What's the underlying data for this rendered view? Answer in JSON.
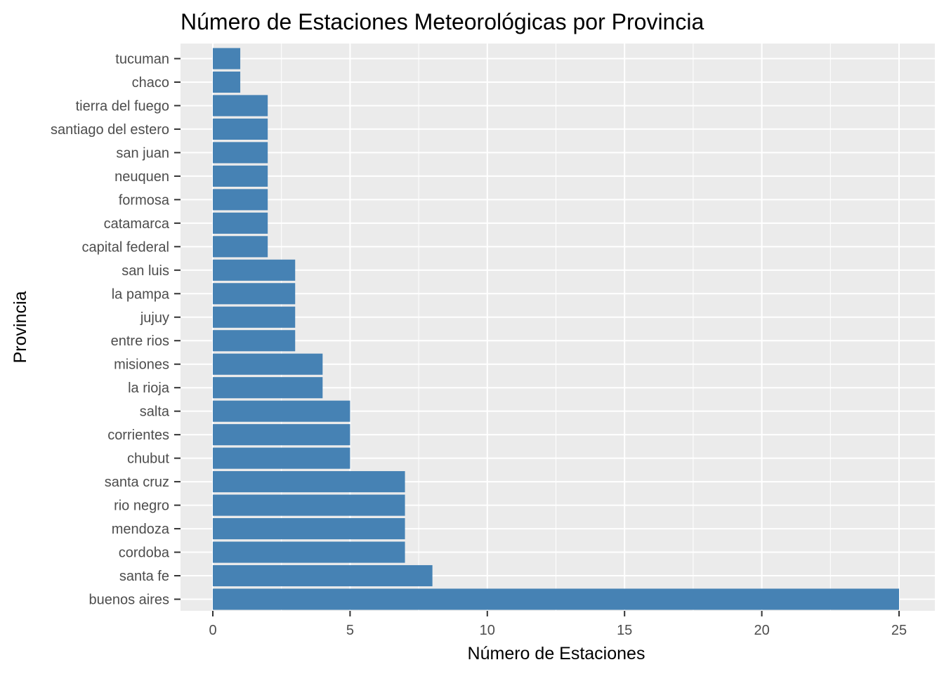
{
  "chart_data": {
    "type": "bar",
    "orientation": "horizontal",
    "title": "Número de Estaciones Meteorológicas por Provincia",
    "xlabel": "Número de Estaciones",
    "ylabel": "Provincia",
    "categories": [
      "tucuman",
      "chaco",
      "tierra del fuego",
      "santiago del estero",
      "san juan",
      "neuquen",
      "formosa",
      "catamarca",
      "capital federal",
      "san luis",
      "la pampa",
      "jujuy",
      "entre rios",
      "misiones",
      "la rioja",
      "salta",
      "corrientes",
      "chubut",
      "santa cruz",
      "rio negro",
      "mendoza",
      "cordoba",
      "santa fe",
      "buenos aires"
    ],
    "values": [
      1,
      1,
      2,
      2,
      2,
      2,
      2,
      2,
      2,
      3,
      3,
      3,
      3,
      4,
      4,
      5,
      5,
      5,
      7,
      7,
      7,
      7,
      8,
      25
    ],
    "xticks": [
      0,
      5,
      10,
      15,
      20,
      25
    ],
    "xlim": [
      0,
      25
    ],
    "grid": true,
    "legend": "none",
    "bar_color": "#4682B4",
    "panel_color": "#EBEBEB",
    "grid_color": "#FFFFFF"
  }
}
